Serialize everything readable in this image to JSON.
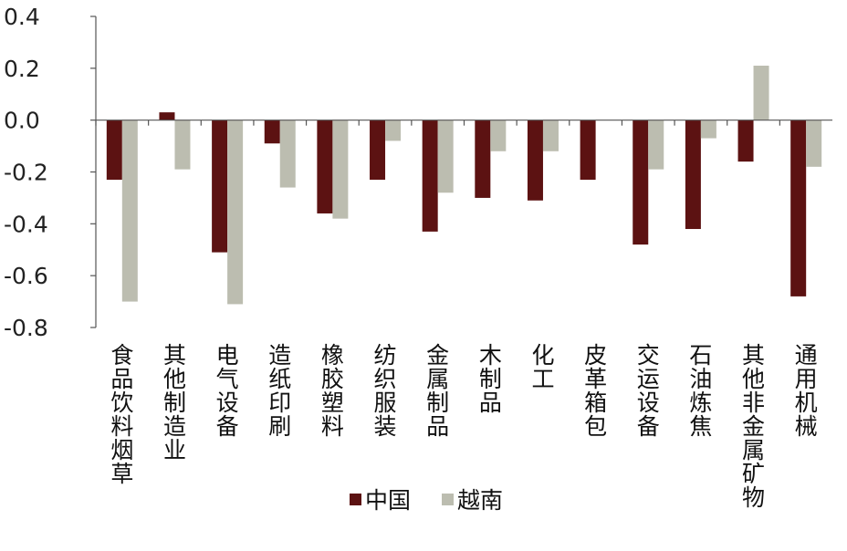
{
  "chart_data": {
    "type": "bar",
    "categories": [
      "食品饮料烟草",
      "其他制造业",
      "电气设备",
      "造纸印刷",
      "橡胶塑料",
      "纺织服装",
      "金属制品",
      "木制品",
      "化工",
      "皮革箱包",
      "交运设备",
      "石油炼焦",
      "其他非金属矿物",
      "通用机械"
    ],
    "series": [
      {
        "name": "中国",
        "color": "#5c1212",
        "values": [
          -0.23,
          0.03,
          -0.51,
          -0.09,
          -0.36,
          -0.23,
          -0.43,
          -0.3,
          -0.31,
          -0.23,
          -0.48,
          -0.42,
          -0.16,
          -0.68
        ]
      },
      {
        "name": "越南",
        "color": "#bcbdb0",
        "values": [
          -0.7,
          -0.19,
          -0.71,
          -0.26,
          -0.38,
          -0.08,
          -0.28,
          -0.12,
          -0.12,
          0.0,
          -0.19,
          -0.07,
          0.21,
          -0.18
        ]
      }
    ],
    "ylim": [
      -0.8,
      0.4
    ],
    "yticks": [
      "0.4",
      "0.2",
      "0.0",
      "-0.2",
      "-0.4",
      "-0.6",
      "-0.8"
    ],
    "ytick_values": [
      0.4,
      0.2,
      0.0,
      -0.2,
      -0.4,
      -0.6,
      -0.8
    ],
    "legend_position": "bottom",
    "grid": false,
    "title": "",
    "xlabel": "",
    "ylabel": ""
  }
}
